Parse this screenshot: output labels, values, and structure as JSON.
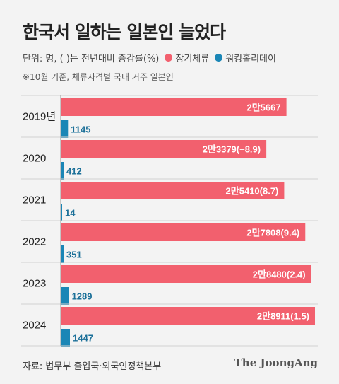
{
  "title": "한국서 일하는 일본인 늘었다",
  "subtitle_unit": "단위: 명, ( )는 전년대비 증감률(%)",
  "note": "※10월 기준, 체류자격별 국내 거주 일본인",
  "source": "자료: 법무부 출입국·외국인정책본부",
  "brand": "The JoongAng",
  "colors": {
    "long_stay": "#f2606e",
    "working_holiday": "#1a86b6"
  },
  "chart_data": {
    "type": "bar",
    "categories": [
      "2019년",
      "2020",
      "2021",
      "2022",
      "2023",
      "2024"
    ],
    "series": [
      {
        "name": "장기체류",
        "values": [
          25667,
          23379,
          25410,
          27808,
          28480,
          28911
        ],
        "labels": [
          "2만5667",
          "2만3379(−8.9)",
          "2만5410(8.7)",
          "2만7808(9.4)",
          "2만8480(2.4)",
          "2만8911(1.5)"
        ]
      },
      {
        "name": "워킹홀리데이",
        "values": [
          1145,
          412,
          14,
          351,
          1289,
          1447
        ],
        "labels": [
          "1145",
          "412",
          "14",
          "351",
          "1289",
          "1447"
        ]
      }
    ],
    "orientation": "horizontal"
  }
}
